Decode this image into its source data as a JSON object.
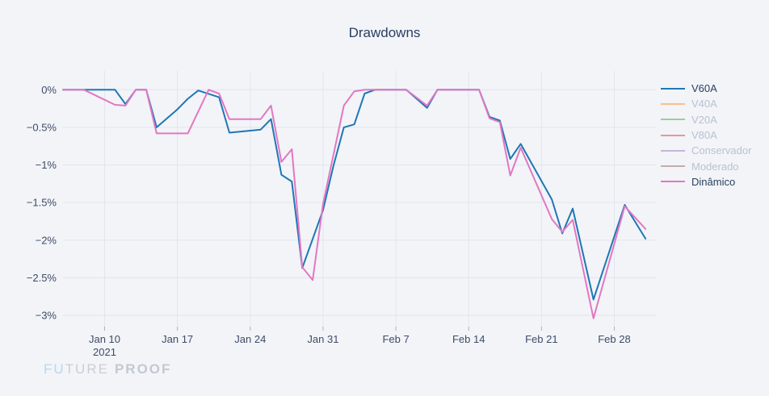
{
  "title": "Drawdowns",
  "watermark": {
    "part1": "FU",
    "part2": "TURE",
    "part3": "PROOF"
  },
  "colors": {
    "background": "#f2f4f8",
    "grid": "#e2e5ee",
    "tick_mark": "#a9b1c2",
    "tick_text": "#3f4b66",
    "title_text": "#2a3f5f",
    "legend_active_text": "#2a3f5f",
    "legend_inactive_text": "#b9c2d0"
  },
  "legend": {
    "items": [
      {
        "label": "V60A",
        "color": "#1f77b4",
        "active": true
      },
      {
        "label": "V40A",
        "color": "#ff7f0e",
        "active": false
      },
      {
        "label": "V20A",
        "color": "#2ca02c",
        "active": false
      },
      {
        "label": "V80A",
        "color": "#d62728",
        "active": false
      },
      {
        "label": "Conservador",
        "color": "#9467bd",
        "active": false
      },
      {
        "label": "Moderado",
        "color": "#8c564b",
        "active": false
      },
      {
        "label": "Dinâmico",
        "color": "#e377c2",
        "active": true
      }
    ]
  },
  "chart_data": {
    "type": "line",
    "title": "Drawdowns",
    "grid": true,
    "legend_position": "right",
    "x_axis": {
      "type": "date",
      "range": [
        "2021-01-06",
        "2021-03-04"
      ],
      "ticks": [
        {
          "label": "Jan 10",
          "sublabel": "2021",
          "date": "2021-01-10"
        },
        {
          "label": "Jan 17",
          "date": "2021-01-17"
        },
        {
          "label": "Jan 24",
          "date": "2021-01-24"
        },
        {
          "label": "Jan 31",
          "date": "2021-01-31"
        },
        {
          "label": "Feb 7",
          "date": "2021-02-07"
        },
        {
          "label": "Feb 14",
          "date": "2021-02-14"
        },
        {
          "label": "Feb 21",
          "date": "2021-02-21"
        },
        {
          "label": "Feb 28",
          "date": "2021-02-28"
        }
      ]
    },
    "y_axis": {
      "unit": "percent",
      "range": [
        0.25,
        -3.15
      ],
      "ticks": [
        {
          "label": "0%",
          "value": 0
        },
        {
          "label": "−0.5%",
          "value": -0.5
        },
        {
          "label": "−1%",
          "value": -1
        },
        {
          "label": "−1.5%",
          "value": -1.5
        },
        {
          "label": "−2%",
          "value": -2
        },
        {
          "label": "−2.5%",
          "value": -2.5
        },
        {
          "label": "−3%",
          "value": -3
        }
      ]
    },
    "series": [
      {
        "name": "V60A",
        "color": "#1f77b4",
        "visible": true,
        "points": [
          [
            "2021-01-06",
            0
          ],
          [
            "2021-01-08",
            0
          ],
          [
            "2021-01-11",
            0
          ],
          [
            "2021-01-12",
            -0.19
          ],
          [
            "2021-01-13",
            0
          ],
          [
            "2021-01-14",
            0
          ],
          [
            "2021-01-15",
            -0.5
          ],
          [
            "2021-01-17",
            -0.26
          ],
          [
            "2021-01-18",
            -0.12
          ],
          [
            "2021-01-19",
            -0.01
          ],
          [
            "2021-01-21",
            -0.1
          ],
          [
            "2021-01-22",
            -0.57
          ],
          [
            "2021-01-25",
            -0.53
          ],
          [
            "2021-01-26",
            -0.39
          ],
          [
            "2021-01-27",
            -1.13
          ],
          [
            "2021-01-28",
            -1.22
          ],
          [
            "2021-01-29",
            -2.37
          ],
          [
            "2021-01-31",
            -1.6
          ],
          [
            "2021-02-01",
            -1.01
          ],
          [
            "2021-02-02",
            -0.5
          ],
          [
            "2021-02-03",
            -0.46
          ],
          [
            "2021-02-04",
            -0.05
          ],
          [
            "2021-02-05",
            0
          ],
          [
            "2021-02-08",
            0
          ],
          [
            "2021-02-10",
            -0.24
          ],
          [
            "2021-02-11",
            0
          ],
          [
            "2021-02-15",
            0
          ],
          [
            "2021-02-16",
            -0.36
          ],
          [
            "2021-02-17",
            -0.41
          ],
          [
            "2021-02-18",
            -0.92
          ],
          [
            "2021-02-19",
            -0.72
          ],
          [
            "2021-02-22",
            -1.46
          ],
          [
            "2021-02-23",
            -1.91
          ],
          [
            "2021-02-24",
            -1.58
          ],
          [
            "2021-02-26",
            -2.79
          ],
          [
            "2021-03-01",
            -1.53
          ],
          [
            "2021-03-03",
            -1.98
          ]
        ]
      },
      {
        "name": "V40A",
        "color": "#ff7f0e",
        "visible": false,
        "points": []
      },
      {
        "name": "V20A",
        "color": "#2ca02c",
        "visible": false,
        "points": []
      },
      {
        "name": "V80A",
        "color": "#d62728",
        "visible": false,
        "points": []
      },
      {
        "name": "Conservador",
        "color": "#9467bd",
        "visible": false,
        "points": []
      },
      {
        "name": "Moderado",
        "color": "#8c564b",
        "visible": false,
        "points": []
      },
      {
        "name": "Dinâmico",
        "color": "#e377c2",
        "visible": true,
        "points": [
          [
            "2021-01-06",
            0
          ],
          [
            "2021-01-08",
            0
          ],
          [
            "2021-01-11",
            -0.2
          ],
          [
            "2021-01-12",
            -0.21
          ],
          [
            "2021-01-13",
            0
          ],
          [
            "2021-01-14",
            0
          ],
          [
            "2021-01-15",
            -0.58
          ],
          [
            "2021-01-18",
            -0.58
          ],
          [
            "2021-01-20",
            0
          ],
          [
            "2021-01-21",
            -0.05
          ],
          [
            "2021-01-22",
            -0.39
          ],
          [
            "2021-01-25",
            -0.39
          ],
          [
            "2021-01-26",
            -0.21
          ],
          [
            "2021-01-27",
            -0.96
          ],
          [
            "2021-01-28",
            -0.79
          ],
          [
            "2021-01-29",
            -2.36
          ],
          [
            "2021-01-30",
            -2.53
          ],
          [
            "2021-01-31",
            -1.52
          ],
          [
            "2021-02-02",
            -0.21
          ],
          [
            "2021-02-03",
            -0.02
          ],
          [
            "2021-02-04",
            0
          ],
          [
            "2021-02-08",
            0
          ],
          [
            "2021-02-10",
            -0.21
          ],
          [
            "2021-02-11",
            0
          ],
          [
            "2021-02-15",
            0
          ],
          [
            "2021-02-16",
            -0.38
          ],
          [
            "2021-02-17",
            -0.43
          ],
          [
            "2021-02-18",
            -1.14
          ],
          [
            "2021-02-19",
            -0.77
          ],
          [
            "2021-02-22",
            -1.72
          ],
          [
            "2021-02-23",
            -1.89
          ],
          [
            "2021-02-24",
            -1.73
          ],
          [
            "2021-02-26",
            -3.04
          ],
          [
            "2021-03-01",
            -1.55
          ],
          [
            "2021-03-03",
            -1.85
          ]
        ]
      }
    ]
  }
}
